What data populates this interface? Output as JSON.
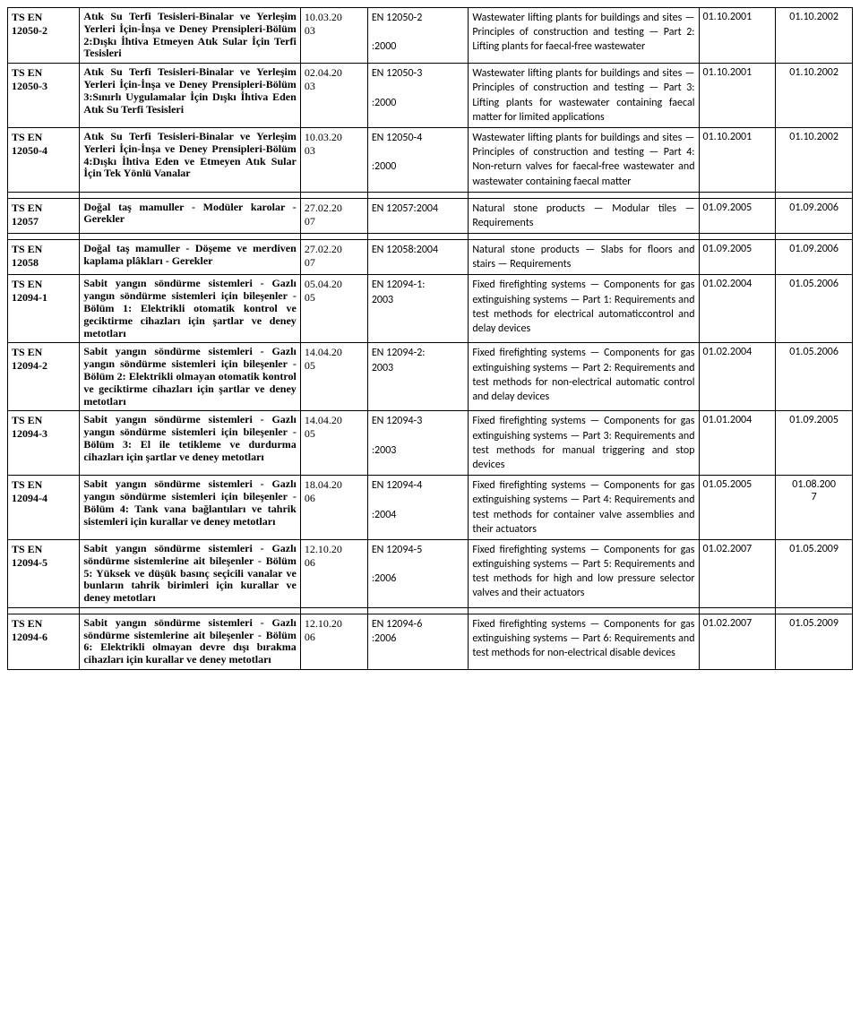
{
  "rows": [
    {
      "id": "TS        EN\n12050-2",
      "title_tr": "Atık Su Terfi Tesisleri-Binalar ve Yerleşim Yerleri İçin-İnşa ve Deney Prensipleri-Bölüm 2:Dışkı İhtiva Etmeyen Atık Sular İçin Terfi Tesisleri",
      "date_col": "10.03.20\n03",
      "ref": "EN 12050-2\n\n:2000",
      "title_en": "Wastewater lifting plants for buildings and sites — Principles of construction and testing — Part 2: Lifting plants for faecal-free wastewater",
      "d1": "01.10.2001",
      "d2": "01.10.2002"
    },
    {
      "id": "TS        EN\n12050-3",
      "title_tr": "Atık Su Terfi Tesisleri-Binalar ve Yerleşim Yerleri İçin-İnşa ve Deney Prensipleri-Bölüm 3:Sınırlı Uygulamalar İçin Dışkı İhtiva Eden Atık Su Terfi Tesisleri",
      "date_col": "02.04.20\n03",
      "ref": "EN 12050-3\n\n:2000",
      "title_en": "Wastewater lifting plants for buildings and sites — Principles of construction and testing — Part 3: Lifting plants for wastewater containing faecal matter for limited applications",
      "d1": "01.10.2001",
      "d2": "01.10.2002"
    },
    {
      "id": "TS        EN\n12050-4",
      "title_tr": "Atık Su Terfi Tesisleri-Binalar ve Yerleşim Yerleri İçin-İnşa ve Deney Prensipleri-Bölüm 4:Dışkı İhtiva Eden ve Etmeyen Atık Sular İçin Tek Yönlü Vanalar",
      "date_col": "10.03.20\n03",
      "ref": "EN 12050-4\n\n:2000",
      "title_en": "Wastewater lifting plants for buildings and sites — Principles of construction and testing — Part 4: Non-return valves for faecal-free wastewater and wastewater containing faecal matter",
      "d1": "01.10.2001",
      "d2": "01.10.2002"
    },
    {
      "spacer": true
    },
    {
      "id": "TS        EN\n12057",
      "title_tr": "Doğal taş mamuller - Modüler karolar - Gerekler",
      "date_col": "27.02.20\n07",
      "ref": "EN 12057:2004",
      "title_en": "Natural stone products — Modular tiles — Requirements",
      "d1": "01.09.2005",
      "d2": "01.09.2006"
    },
    {
      "spacer": true
    },
    {
      "id": "TS        EN\n12058",
      "title_tr": "Doğal taş mamuller - Döşeme ve merdiven kaplama plâkları - Gerekler",
      "date_col": "27.02.20\n07",
      "ref": "EN 12058:2004",
      "title_en": "Natural stone products — Slabs for floors and stairs — Requirements",
      "d1": "01.09.2005",
      "d2": "01.09.2006"
    },
    {
      "id": "TS        EN\n12094-1",
      "title_tr": "Sabit yangın söndürme sistemleri - Gazlı yangın söndürme sistemleri için bileşenler - Bölüm 1: Elektrikli otomatik kontrol ve geciktirme cihazları için şartlar ve deney metotları",
      "date_col": "05.04.20\n05",
      "ref": "EN 12094-1:\n2003",
      "title_en": "Fixed firefighting systems — Components for gas extinguishing systems — Part 1: Requirements and test methods for electrical automaticcontrol and delay devices",
      "d1": "01.02.2004",
      "d2": "01.05.2006"
    },
    {
      "id": "TS        EN\n12094-2",
      "title_tr": "Sabit yangın söndürme sistemleri - Gazlı yangın söndürme sistemleri için bileşenler - Bölüm 2: Elektrikli olmayan otomatik kontrol ve geciktirme cihazları için şartlar ve deney metotları",
      "date_col": "14.04.20\n05",
      "ref": "EN 12094-2:\n2003",
      "title_en": "Fixed firefighting systems — Components for gas extinguishing systems — Part 2: Requirements and test methods for non-electrical automatic control and delay devices",
      "d1": "01.02.2004",
      "d2": "01.05.2006"
    },
    {
      "id": "TS        EN\n12094-3",
      "title_tr": "Sabit yangın söndürme sistemleri - Gazlı yangın söndürme sistemleri için bileşenler - Bölüm 3: El ile tetikleme ve durdurma cihazları için şartlar ve deney metotları",
      "date_col": "14.04.20\n05",
      "ref": "EN 12094-3\n\n:2003",
      "title_en": "Fixed firefighting systems — Components for gas extinguishing systems — Part 3: Requirements and test methods for manual triggering and stop devices",
      "d1": "01.01.2004",
      "d2": "01.09.2005"
    },
    {
      "id": "TS        EN\n12094-4",
      "title_tr": "Sabit yangın söndürme sistemleri - Gazlı yangın söndürme sistemleri için bileşenler - Bölüm 4: Tank vana bağlantıları ve tahrik sistemleri için kurallar ve deney metotları",
      "date_col": "18.04.20\n06",
      "ref": "EN 12094-4\n\n:2004",
      "title_en": "Fixed firefighting systems — Components for gas extinguishing systems — Part 4: Requirements and test methods for container valve assemblies and their actuators",
      "d1": "01.05.2005",
      "d2": "01.08.200\n7"
    },
    {
      "id": "TS        EN\n12094-5",
      "title_tr": "Sabit yangın söndürme sistemleri - Gazlı söndürme sistemlerine ait bileşenler - Bölüm 5: Yüksek ve düşük basınç seçicili vanalar ve bunların tahrik birimleri için kurallar ve deney metotları",
      "date_col": "12.10.20\n06",
      "ref": "EN 12094-5\n\n:2006",
      "title_en": "Fixed firefighting systems — Components for gas extinguishing systems — Part 5: Requirements and test methods for high and low pressure selector valves and their actuators",
      "d1": "01.02.2007",
      "d2": "01.05.2009"
    },
    {
      "spacer": true
    },
    {
      "id": "TS        EN\n12094-6",
      "title_tr": "Sabit yangın söndürme sistemleri - Gazlı söndürme sistemlerine ait bileşenler - Bölüm 6: Elektrikli olmayan devre dışı bırakma cihazları için kurallar ve deney metotları",
      "date_col": "12.10.20\n06",
      "ref": "EN 12094-6\n:2006",
      "title_en": "Fixed firefighting systems — Components for gas extinguishing systems — Part 6: Requirements and test methods for non-electrical disable devices",
      "d1": "01.02.2007",
      "d2": "01.05.2009"
    }
  ]
}
